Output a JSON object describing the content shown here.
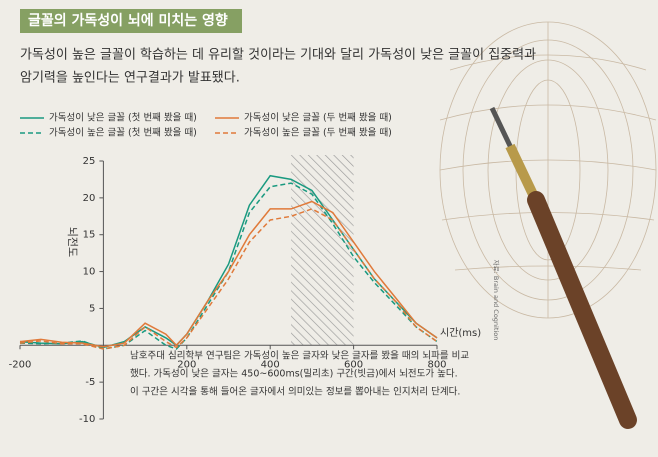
{
  "header": {
    "title": "글꼴의 가독성이 뇌에 미치는 영향",
    "subtitle_lines": [
      "가독성이 높은 글꼴이 학습하는 데 유리할 것이라는 기대와 달리 가독성이 낮은 글꼴이 집중력과",
      "암기력을 높인다는 연구결과가 발표됐다."
    ]
  },
  "chart_data": {
    "type": "line",
    "ylabel": "뇌전도",
    "xlabel": "시간(ms)",
    "x": [
      -200,
      -150,
      -100,
      -50,
      0,
      50,
      100,
      150,
      175,
      200,
      250,
      300,
      350,
      400,
      450,
      500,
      550,
      600,
      650,
      700,
      750,
      800
    ],
    "xlim": [
      -200,
      800
    ],
    "xticks": [
      -200,
      200,
      400,
      600,
      800
    ],
    "ylim": [
      -10,
      25
    ],
    "yticks": [
      -10,
      -5,
      5,
      10,
      15,
      20,
      25
    ],
    "shade_x": [
      450,
      600
    ],
    "series": [
      {
        "name": "가독성이 낮은 글꼴 (첫 번째 봤을 때)",
        "color": "#1a9a80",
        "dash": false,
        "values": [
          0.5,
          0.3,
          0.2,
          0.5,
          -0.3,
          0.5,
          2.5,
          1,
          0,
          1.5,
          6,
          11,
          19,
          23,
          22.5,
          21,
          17,
          13,
          9,
          6,
          3,
          1
        ]
      },
      {
        "name": "가독성이 높은 글꼴 (첫 번째 봤을 때)",
        "color": "#1a9a80",
        "dash": true,
        "values": [
          0.3,
          0.2,
          0.3,
          0.6,
          -0.5,
          0,
          2,
          0,
          -0.5,
          1,
          5.5,
          10,
          18,
          21.5,
          22,
          20.5,
          16.5,
          12,
          8.5,
          5.5,
          2.5,
          0.5
        ]
      },
      {
        "name": "가독성이 낮은 글꼴 (두 번째 봤을 때)",
        "color": "#e07a3a",
        "dash": false,
        "values": [
          0.5,
          0.8,
          0.4,
          0.3,
          -0.2,
          0.3,
          3,
          1.5,
          0,
          1.5,
          6,
          10,
          15,
          18.5,
          18.5,
          19.5,
          18,
          14,
          10,
          6.5,
          3,
          1
        ]
      },
      {
        "name": "가독성이 높은 글꼴 (두 번째 봤을 때)",
        "color": "#e07a3a",
        "dash": true,
        "values": [
          0.3,
          0.6,
          0.2,
          0.2,
          -0.5,
          0,
          2.5,
          0.5,
          -0.3,
          1,
          5,
          9,
          14,
          17,
          17.5,
          18.5,
          17,
          13,
          9,
          6,
          2.5,
          0.5
        ]
      }
    ]
  },
  "note": {
    "lines": [
      "남호주대 심리학부 연구팀은 가독성이 높은 글자와 낮은 글자를 봤을 때의 뇌파를 비교",
      "했다. 가독성이 낮은 글자는 450~600ms(밀리초) 구간(빗금)에서 뇌전도가 높다.",
      "이 구간은 시각을 통해 들어온 글자에서 의미있는 정보를 뽑아내는 인지처리 단계다."
    ]
  },
  "credit": "자료: Brain and Cognition"
}
